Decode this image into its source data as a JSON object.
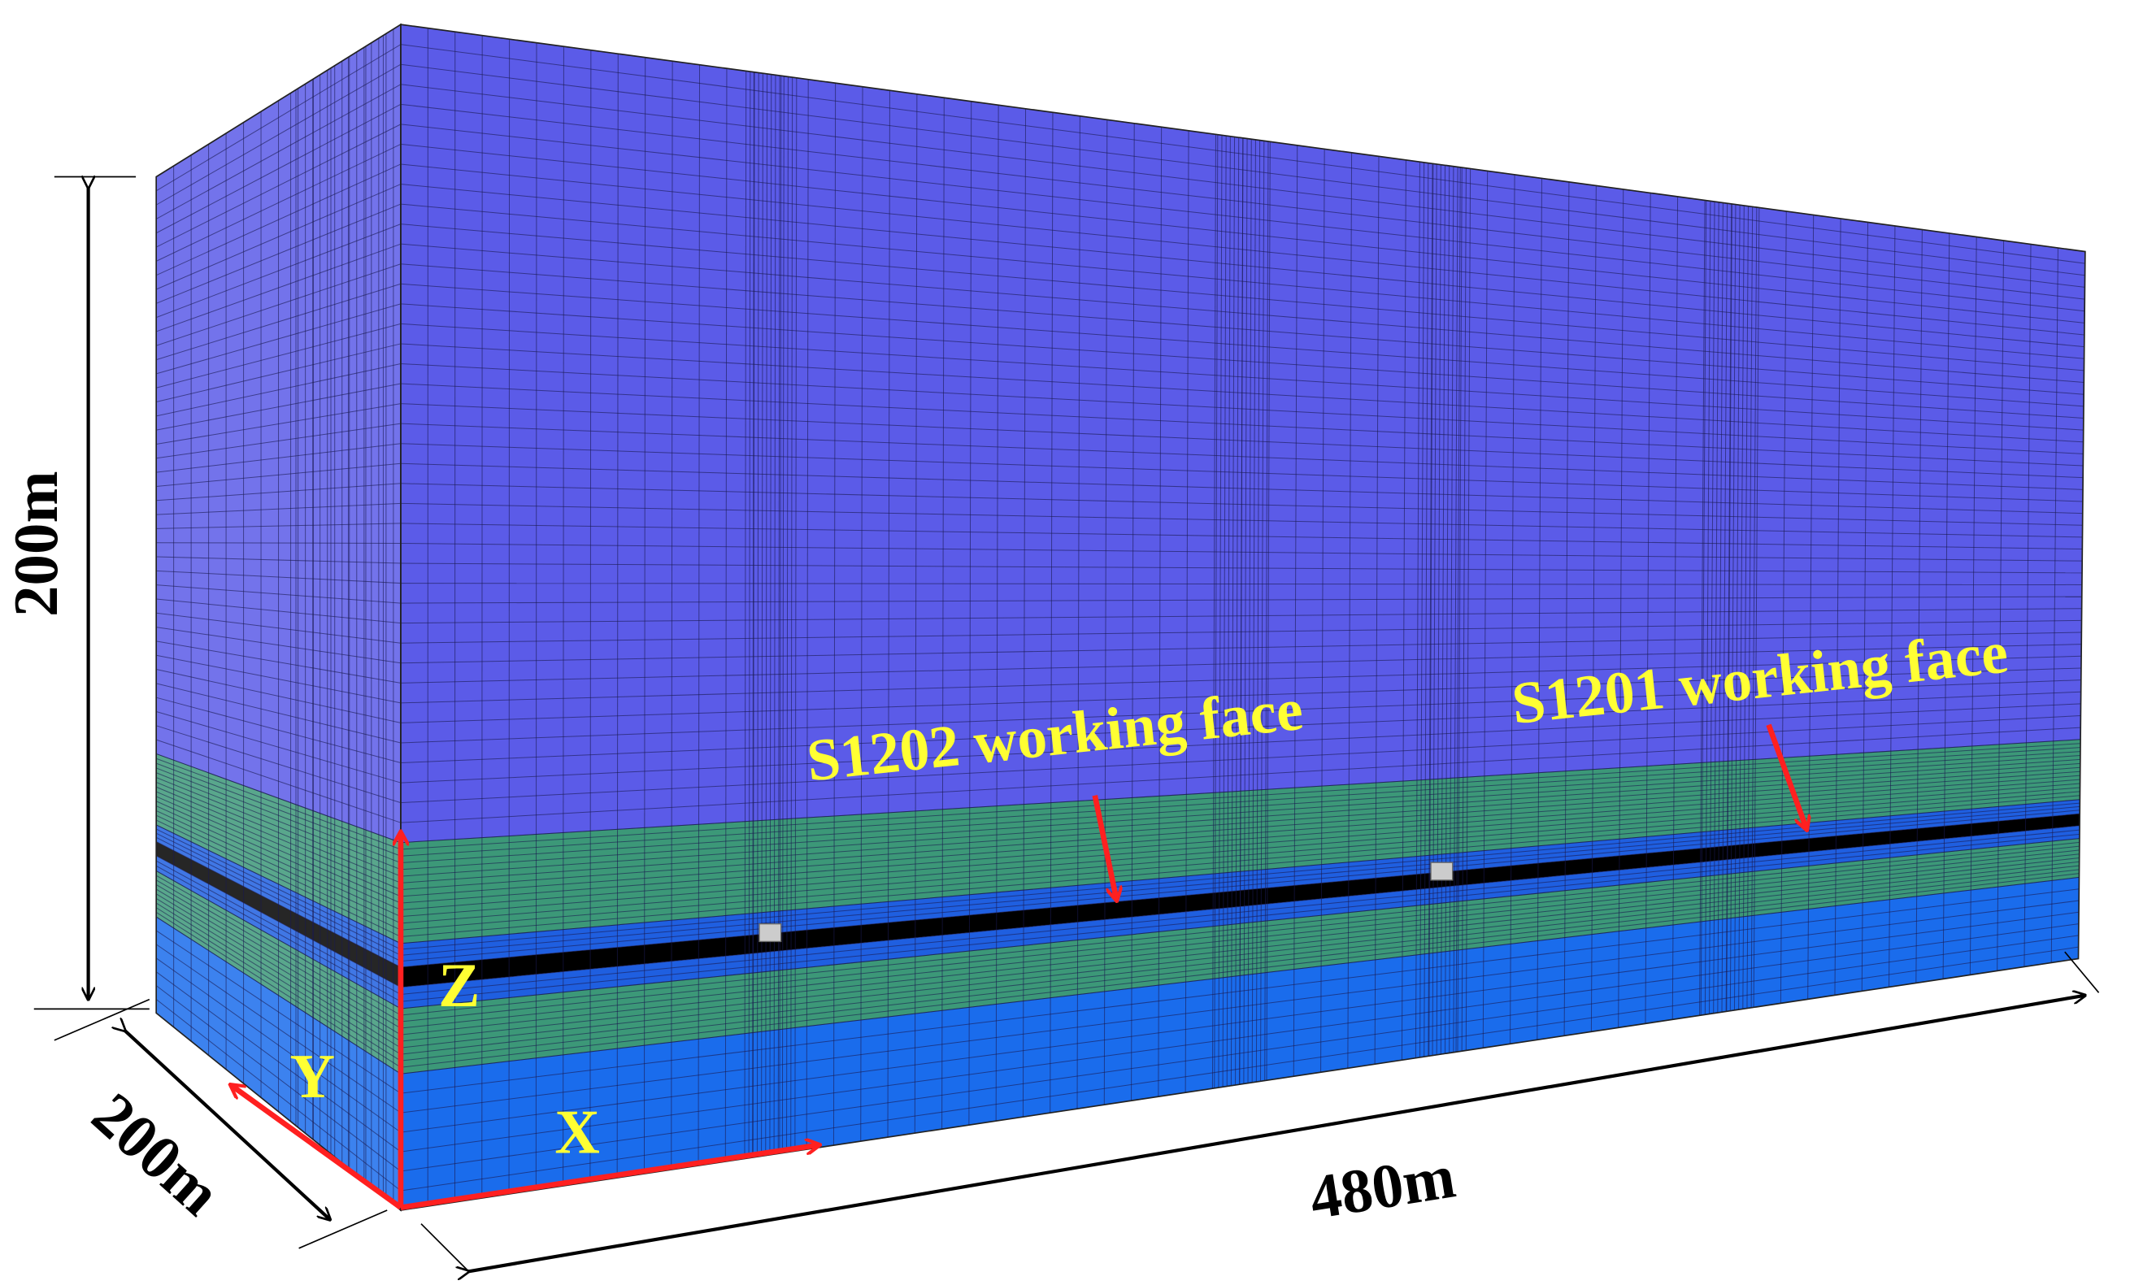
{
  "labels": {
    "height": "200m",
    "depth": "200m",
    "length": "480m",
    "working_face_1": "S1202 working face",
    "working_face_2": "S1201 working face",
    "axis_x": "X",
    "axis_y": "Y",
    "axis_z": "Z"
  }
}
